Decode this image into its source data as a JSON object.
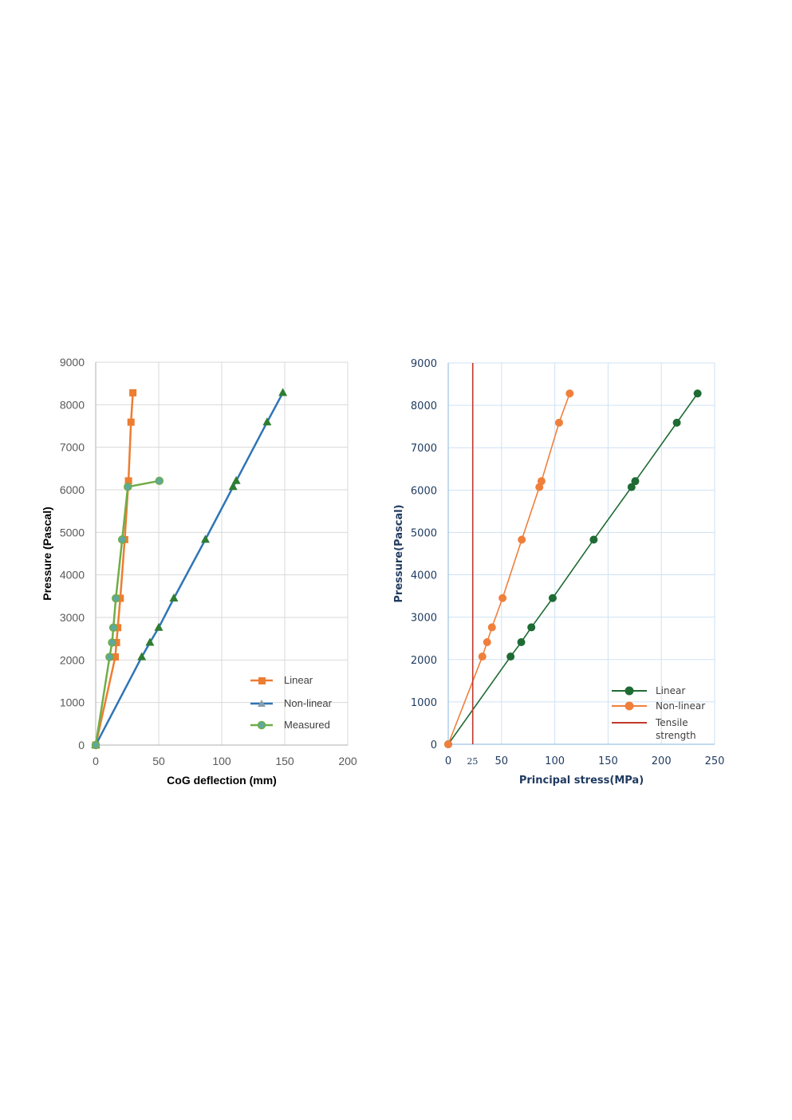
{
  "chart_data": [
    {
      "type": "line",
      "title": "",
      "xlabel": "CoG deflection (mm)",
      "ylabel": "Pressure (Pascal)",
      "xlim": [
        0,
        200
      ],
      "ylim": [
        0,
        9000
      ],
      "xticks": [
        "0",
        "50",
        "100",
        "150",
        "200"
      ],
      "yticks": [
        "0",
        "1000",
        "2000",
        "3000",
        "4000",
        "5000",
        "6000",
        "7000",
        "8000",
        "9000"
      ],
      "grid": true,
      "legend_position": "bottom-right",
      "series": [
        {
          "name": "Linear",
          "color": "#ed7d31",
          "marker": "square",
          "points": [
            [
              0,
              0
            ],
            [
              15.5,
              2070
            ],
            [
              16.5,
              2410
            ],
            [
              17.5,
              2760
            ],
            [
              19.5,
              3450
            ],
            [
              23,
              4830
            ],
            [
              26,
              6210
            ],
            [
              28,
              7590
            ],
            [
              29.5,
              8280
            ]
          ]
        },
        {
          "name": "Non-linear",
          "color": "#2e75b6",
          "marker_color": "#2e7d32",
          "marker": "triangle",
          "points": [
            [
              0,
              0
            ],
            [
              36.5,
              2070
            ],
            [
              43,
              2410
            ],
            [
              50,
              2760
            ],
            [
              62,
              3450
            ],
            [
              87,
              4830
            ],
            [
              109,
              6070
            ],
            [
              111.5,
              6210
            ],
            [
              136,
              7590
            ],
            [
              148.5,
              8280
            ]
          ]
        },
        {
          "name": "Measured",
          "color": "#70ad47",
          "marker": "circle",
          "marker_fill": "#5fa8a0",
          "points": [
            [
              0,
              0
            ],
            [
              11,
              2070
            ],
            [
              13,
              2410
            ],
            [
              14,
              2760
            ],
            [
              16,
              3450
            ],
            [
              21,
              4830
            ],
            [
              25.5,
              6070
            ],
            [
              50.5,
              6210
            ]
          ]
        }
      ]
    },
    {
      "type": "line",
      "title": "",
      "xlabel": "Principal stress(MPa)",
      "ylabel": "Pressure(Pascal)",
      "xlim": [
        0,
        250
      ],
      "ylim": [
        0,
        9000
      ],
      "xticks": [
        "0",
        "25",
        "50",
        "100",
        "150",
        "200",
        "250"
      ],
      "yticks": [
        "0",
        "1000",
        "2000",
        "3000",
        "4000",
        "5000",
        "6000",
        "7000",
        "8000",
        "9000"
      ],
      "grid": true,
      "legend_position": "bottom-right",
      "series": [
        {
          "name": "Linear",
          "color": "#1e6b34",
          "marker": "circle",
          "points": [
            [
              0,
              0
            ],
            [
              58.5,
              2070
            ],
            [
              68.5,
              2410
            ],
            [
              78,
              2760
            ],
            [
              98,
              3450
            ],
            [
              136.5,
              4830
            ],
            [
              172,
              6070
            ],
            [
              175.5,
              6210
            ],
            [
              214.5,
              7590
            ],
            [
              234,
              8280
            ]
          ]
        },
        {
          "name": "Non-linear",
          "color": "#f07f3c",
          "marker": "circle",
          "points": [
            [
              0,
              0
            ],
            [
              32,
              2070
            ],
            [
              36.5,
              2410
            ],
            [
              41,
              2760
            ],
            [
              51,
              3450
            ],
            [
              69,
              4830
            ],
            [
              85.5,
              6070
            ],
            [
              87.5,
              6210
            ],
            [
              104,
              7590
            ],
            [
              114,
              8280
            ]
          ]
        },
        {
          "name": "Tensile strength",
          "legend_lines": [
            "Tensile",
            "strength"
          ],
          "color": "#c0392b",
          "marker": "none",
          "vertical_line_x": 23
        }
      ]
    }
  ]
}
